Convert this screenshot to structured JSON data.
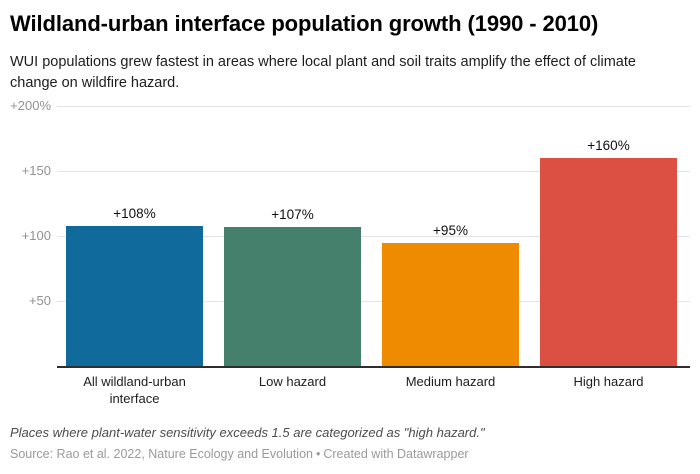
{
  "header": {
    "title": "Wildland-urban interface population growth (1990 - 2010)",
    "subtitle": "WUI populations grew fastest in areas where local plant and soil traits amplify the effect of climate change on wildfire hazard."
  },
  "chart_data": {
    "type": "bar",
    "title": "Wildland-urban interface population growth (1990 - 2010)",
    "subtitle": "WUI populations grew fastest in areas where local plant and soil traits amplify the effect of climate change on wildfire hazard.",
    "categories": [
      "All wildland-urban interface",
      "Low hazard",
      "Medium hazard",
      "High hazard"
    ],
    "values": [
      108,
      107,
      95,
      160
    ],
    "value_labels": [
      "+108%",
      "+107%",
      "+95%",
      "+160%"
    ],
    "bar_colors": [
      "#106a9c",
      "#45806d",
      "#ef8b00",
      "#dc5044"
    ],
    "xlabel": "",
    "ylabel": "",
    "ylim": [
      0,
      200
    ],
    "yticks": [
      {
        "value": 200,
        "label": "+200%"
      },
      {
        "value": 150,
        "label": "+150"
      },
      {
        "value": 100,
        "label": "+100"
      },
      {
        "value": 50,
        "label": "+50"
      }
    ],
    "grid": true,
    "legend": false,
    "gridline_color": "#e3e3e3",
    "axis_label_color": "#929292",
    "baseline_color": "#2e2e2e"
  },
  "footer": {
    "footnote": "Places where plant-water sensitivity exceeds 1.5 are categorized as \"high hazard.\"",
    "source_label": "Source: Rao et al. 2022, Nature Ecology and Evolution",
    "separator": "•",
    "credit": "Created with Datawrapper"
  }
}
